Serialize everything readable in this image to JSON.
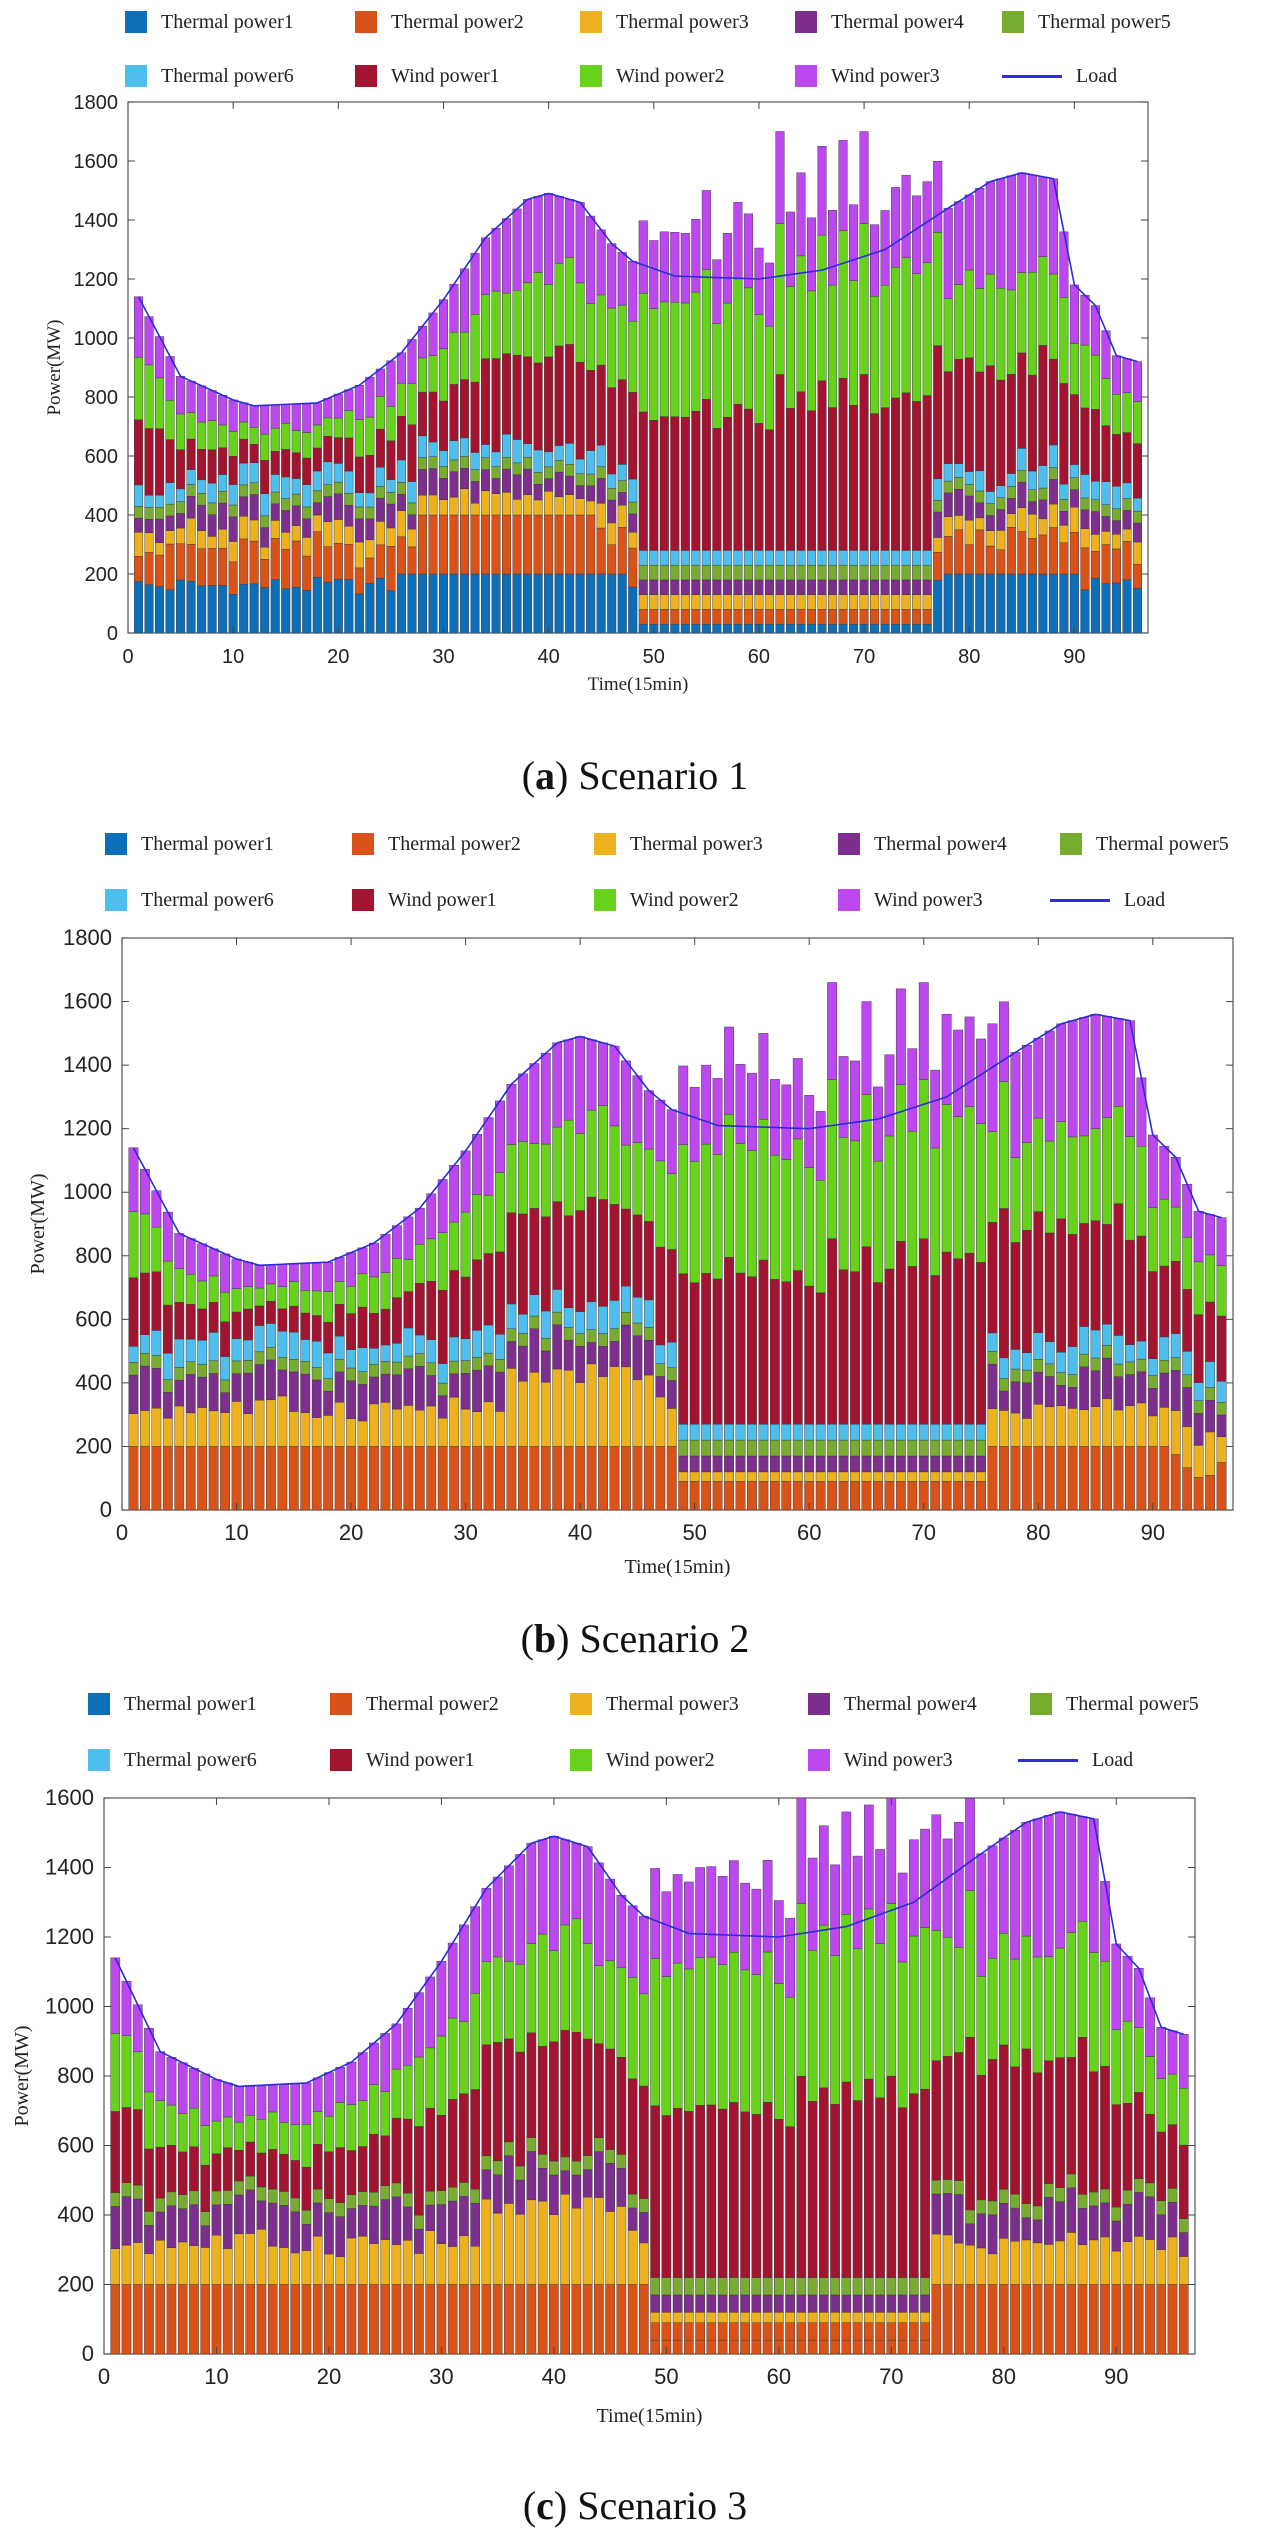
{
  "legend": {
    "thermal1": "Thermal power1",
    "thermal2": "Thermal power2",
    "thermal3": "Thermal power3",
    "thermal4": "Thermal power4",
    "thermal5": "Thermal power5",
    "thermal6": "Thermal power6",
    "wind1": "Wind power1",
    "wind2": "Wind power2",
    "wind3": "Wind power3",
    "load": "Load"
  },
  "colors": {
    "thermal1": "#0d6fb8",
    "thermal2": "#d95319",
    "thermal3": "#edb120",
    "thermal4": "#7e2f8e",
    "thermal5": "#77ac30",
    "thermal6": "#4dbeee",
    "wind1": "#a2142f",
    "wind2": "#66d21c",
    "wind3": "#bd48f0",
    "load": "#2b2bdc"
  },
  "captions": [
    {
      "letter": "a",
      "text": "Scenario 1"
    },
    {
      "letter": "b",
      "text": "Scenario 2"
    },
    {
      "letter": "c",
      "text": "Scenario 3"
    }
  ],
  "chart_data": [
    {
      "type": "bar",
      "stacked": true,
      "title": "Scenario 1",
      "xlabel": "Time(15min)",
      "ylabel": "Power(MW)",
      "xlim": [
        0,
        97
      ],
      "ylim": [
        0,
        1800
      ],
      "xticks": [
        0,
        10,
        20,
        30,
        40,
        50,
        60,
        70,
        80,
        90
      ],
      "yticks": [
        0,
        200,
        400,
        600,
        800,
        1000,
        1200,
        1400,
        1600,
        1800
      ],
      "x_range": [
        1,
        96
      ],
      "series": [
        "Thermal power1",
        "Thermal power2",
        "Thermal power3",
        "Thermal power4",
        "Thermal power5",
        "Thermal power6",
        "Wind power1",
        "Wind power2",
        "Wind power3",
        "Load"
      ],
      "load_points": [
        [
          1,
          1140
        ],
        [
          5,
          870
        ],
        [
          10,
          790
        ],
        [
          12,
          770
        ],
        [
          18,
          780
        ],
        [
          22,
          840
        ],
        [
          26,
          950
        ],
        [
          30,
          1130
        ],
        [
          34,
          1340
        ],
        [
          38,
          1470
        ],
        [
          40,
          1490
        ],
        [
          43,
          1460
        ],
        [
          46,
          1320
        ],
        [
          48,
          1260
        ],
        [
          52,
          1210
        ],
        [
          60,
          1200
        ],
        [
          66,
          1230
        ],
        [
          72,
          1300
        ],
        [
          78,
          1440
        ],
        [
          82,
          1530
        ],
        [
          85,
          1560
        ],
        [
          88,
          1540
        ],
        [
          90,
          1180
        ],
        [
          92,
          1110
        ],
        [
          94,
          940
        ],
        [
          96,
          920
        ]
      ],
      "wind_over_load_peaks": [
        [
          51,
          1360
        ],
        [
          55,
          1500
        ],
        [
          58,
          1460
        ],
        [
          62,
          1700
        ],
        [
          64,
          1560
        ],
        [
          66,
          1650
        ],
        [
          68,
          1670
        ],
        [
          70,
          1700
        ],
        [
          73,
          1440
        ],
        [
          76,
          1450
        ]
      ],
      "thermal1_levels": {
        "low": 30,
        "mid": 130,
        "high": 200
      },
      "thermal2_levels": {
        "low": 80,
        "high": 200
      },
      "thermal_min_block_interval": [
        49,
        76
      ],
      "thermal_min_block_top": 280
    },
    {
      "type": "bar",
      "stacked": true,
      "title": "Scenario 2",
      "xlabel": "Time(15min)",
      "ylabel": "Power(MW)",
      "xlim": [
        0,
        97
      ],
      "ylim": [
        0,
        1800
      ],
      "xticks": [
        0,
        10,
        20,
        30,
        40,
        50,
        60,
        70,
        80,
        90
      ],
      "yticks": [
        0,
        200,
        400,
        600,
        800,
        1000,
        1200,
        1400,
        1600,
        1800
      ],
      "x_range": [
        1,
        96
      ],
      "series": [
        "Thermal power1",
        "Thermal power2",
        "Thermal power3",
        "Thermal power4",
        "Thermal power5",
        "Thermal power6",
        "Wind power1",
        "Wind power2",
        "Wind power3",
        "Load"
      ],
      "load_points": [
        [
          1,
          1140
        ],
        [
          5,
          870
        ],
        [
          10,
          790
        ],
        [
          12,
          770
        ],
        [
          18,
          780
        ],
        [
          22,
          840
        ],
        [
          26,
          950
        ],
        [
          30,
          1130
        ],
        [
          34,
          1340
        ],
        [
          38,
          1470
        ],
        [
          40,
          1490
        ],
        [
          43,
          1460
        ],
        [
          46,
          1320
        ],
        [
          48,
          1260
        ],
        [
          52,
          1210
        ],
        [
          60,
          1200
        ],
        [
          66,
          1230
        ],
        [
          72,
          1300
        ],
        [
          78,
          1440
        ],
        [
          82,
          1530
        ],
        [
          85,
          1560
        ],
        [
          88,
          1540
        ],
        [
          90,
          1180
        ],
        [
          92,
          1110
        ],
        [
          94,
          940
        ],
        [
          96,
          920
        ]
      ],
      "wind_over_load_peaks": [
        [
          51,
          1400
        ],
        [
          53,
          1520
        ],
        [
          56,
          1500
        ],
        [
          62,
          1660
        ],
        [
          65,
          1600
        ],
        [
          68,
          1640
        ],
        [
          70,
          1660
        ],
        [
          72,
          1560
        ],
        [
          74,
          1480
        ]
      ],
      "thermal2_level": 200,
      "thermal_min_block_interval": [
        49,
        75
      ],
      "thermal_min_block_top": 250
    },
    {
      "type": "bar",
      "stacked": true,
      "title": "Scenario 3",
      "xlabel": "Time(15min)",
      "ylabel": "Power(MW)",
      "xlim": [
        0,
        97
      ],
      "ylim": [
        0,
        1600
      ],
      "xticks": [
        0,
        10,
        20,
        30,
        40,
        50,
        60,
        70,
        80,
        90
      ],
      "yticks": [
        0,
        200,
        400,
        600,
        800,
        1000,
        1200,
        1400,
        1600
      ],
      "x_range": [
        1,
        96
      ],
      "series": [
        "Thermal power1",
        "Thermal power2",
        "Thermal power3",
        "Thermal power4",
        "Thermal power5",
        "Thermal power6",
        "Wind power1",
        "Wind power2",
        "Wind power3",
        "Load"
      ],
      "load_points": [
        [
          1,
          1140
        ],
        [
          5,
          870
        ],
        [
          10,
          790
        ],
        [
          12,
          770
        ],
        [
          18,
          780
        ],
        [
          22,
          840
        ],
        [
          26,
          950
        ],
        [
          30,
          1130
        ],
        [
          34,
          1340
        ],
        [
          38,
          1470
        ],
        [
          40,
          1490
        ],
        [
          43,
          1460
        ],
        [
          46,
          1320
        ],
        [
          48,
          1260
        ],
        [
          52,
          1210
        ],
        [
          60,
          1200
        ],
        [
          66,
          1230
        ],
        [
          72,
          1300
        ],
        [
          78,
          1440
        ],
        [
          82,
          1530
        ],
        [
          85,
          1560
        ],
        [
          88,
          1540
        ],
        [
          90,
          1180
        ],
        [
          92,
          1110
        ],
        [
          94,
          940
        ],
        [
          96,
          920
        ]
      ],
      "wind_over_load_peaks": [
        [
          51,
          1380
        ],
        [
          53,
          1400
        ],
        [
          56,
          1420
        ],
        [
          62,
          1600
        ],
        [
          64,
          1520
        ],
        [
          66,
          1560
        ],
        [
          68,
          1580
        ],
        [
          70,
          1600
        ],
        [
          72,
          1480
        ]
      ],
      "thermal2_level": 200,
      "thermal_min_block_interval": [
        49,
        73
      ],
      "thermal_min_block_top": 190
    }
  ]
}
